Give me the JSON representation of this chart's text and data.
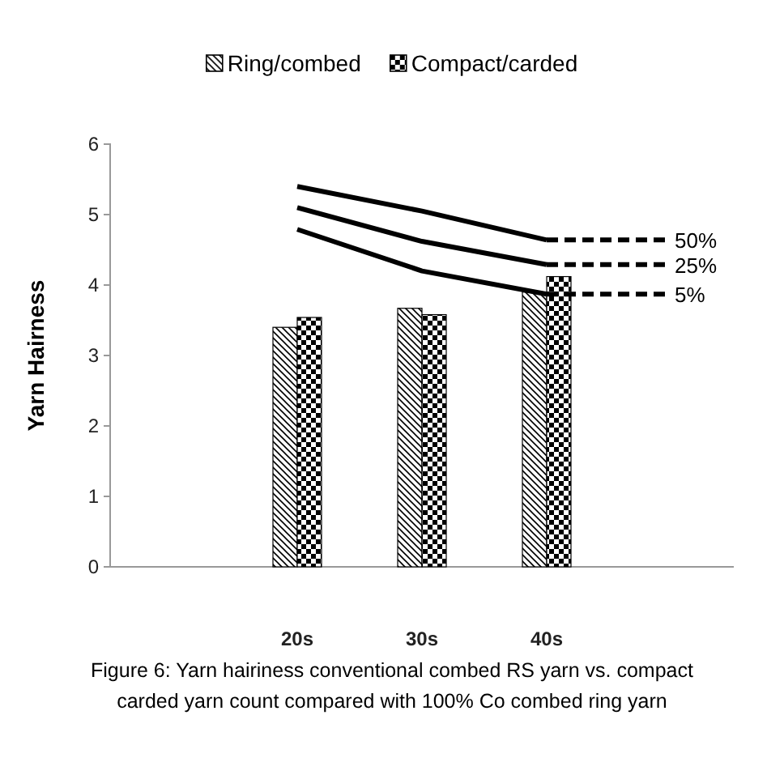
{
  "chart_data": {
    "type": "bar",
    "ylabel": "Yarn Hairness",
    "categories": [
      null,
      "20s",
      "30s",
      "40s",
      null
    ],
    "ylim": [
      0,
      6
    ],
    "yticks": [
      0,
      1,
      2,
      3,
      4,
      5,
      6
    ],
    "legend": "top",
    "annotations": [
      "Figure 6: Yarn hairiness conventional combed RS yarn vs. compact carded yarn count compared with 100% Co combed ring yarn"
    ],
    "series": [
      {
        "name": "Ring/combed",
        "color": "#000000",
        "values": [
          null,
          3.4,
          3.67,
          3.9,
          null
        ]
      },
      {
        "name": "Compact/carded",
        "color": "#000000",
        "values": [
          null,
          3.54,
          3.58,
          4.12,
          null
        ]
      },
      {
        "type": "line",
        "color": "#000000",
        "line_style": "solid",
        "values": [
          null,
          5.4,
          5.05,
          4.64,
          null
        ]
      },
      {
        "type": "line",
        "color": "#000000",
        "line_style": "solid",
        "values": [
          null,
          5.1,
          4.62,
          4.29,
          null
        ]
      },
      {
        "type": "line",
        "color": "#000000",
        "line_style": "solid",
        "values": [
          null,
          4.79,
          4.2,
          3.87,
          null
        ]
      },
      {
        "name": "50%",
        "type": "line",
        "color": "#000000",
        "line_style": "dashed",
        "values": [
          null,
          null,
          null,
          4.64,
          4.64
        ]
      },
      {
        "name": "25%",
        "type": "line",
        "color": "#000000",
        "line_style": "dashed",
        "values": [
          null,
          null,
          null,
          4.29,
          4.29
        ]
      },
      {
        "name": "5%",
        "type": "line",
        "color": "#000000",
        "line_style": "dashed",
        "values": [
          null,
          null,
          null,
          3.87,
          3.87
        ]
      }
    ]
  }
}
